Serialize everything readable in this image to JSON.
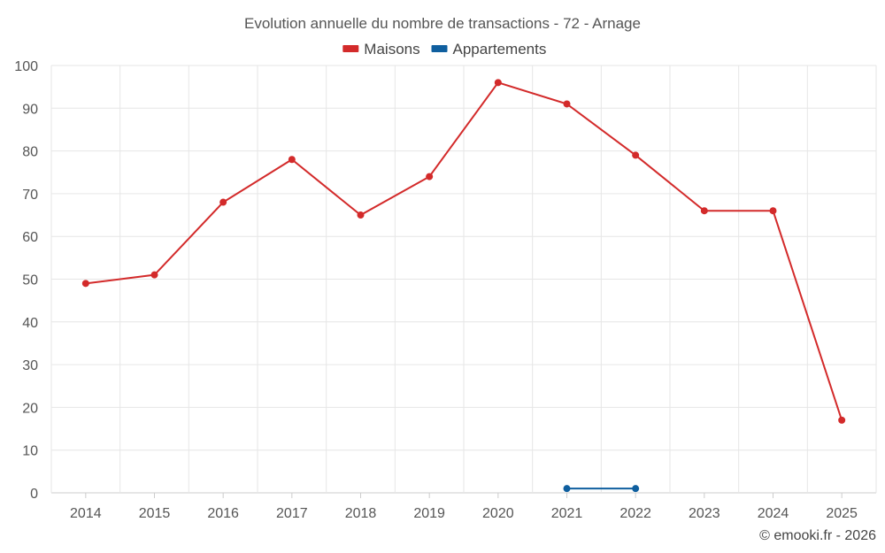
{
  "chart_data": {
    "type": "line",
    "title": "Evolution annuelle du nombre de transactions - 72 - Arnage",
    "categories": [
      "2014",
      "2015",
      "2016",
      "2017",
      "2018",
      "2019",
      "2020",
      "2021",
      "2022",
      "2023",
      "2024",
      "2025"
    ],
    "series": [
      {
        "name": "Maisons",
        "color": "#d32a2a",
        "values": [
          49,
          51,
          68,
          78,
          65,
          74,
          96,
          91,
          79,
          66,
          66,
          17
        ]
      },
      {
        "name": "Appartements",
        "color": "#0f5f9f",
        "values": [
          null,
          null,
          null,
          null,
          null,
          null,
          null,
          1,
          1,
          null,
          null,
          null
        ]
      }
    ],
    "ylim": [
      0,
      100
    ],
    "yticks": [
      0,
      10,
      20,
      30,
      40,
      50,
      60,
      70,
      80,
      90,
      100
    ],
    "grid": true,
    "legend_position": "top-center",
    "xlabel": "",
    "ylabel": ""
  },
  "credit": "© emooki.fr - 2026"
}
